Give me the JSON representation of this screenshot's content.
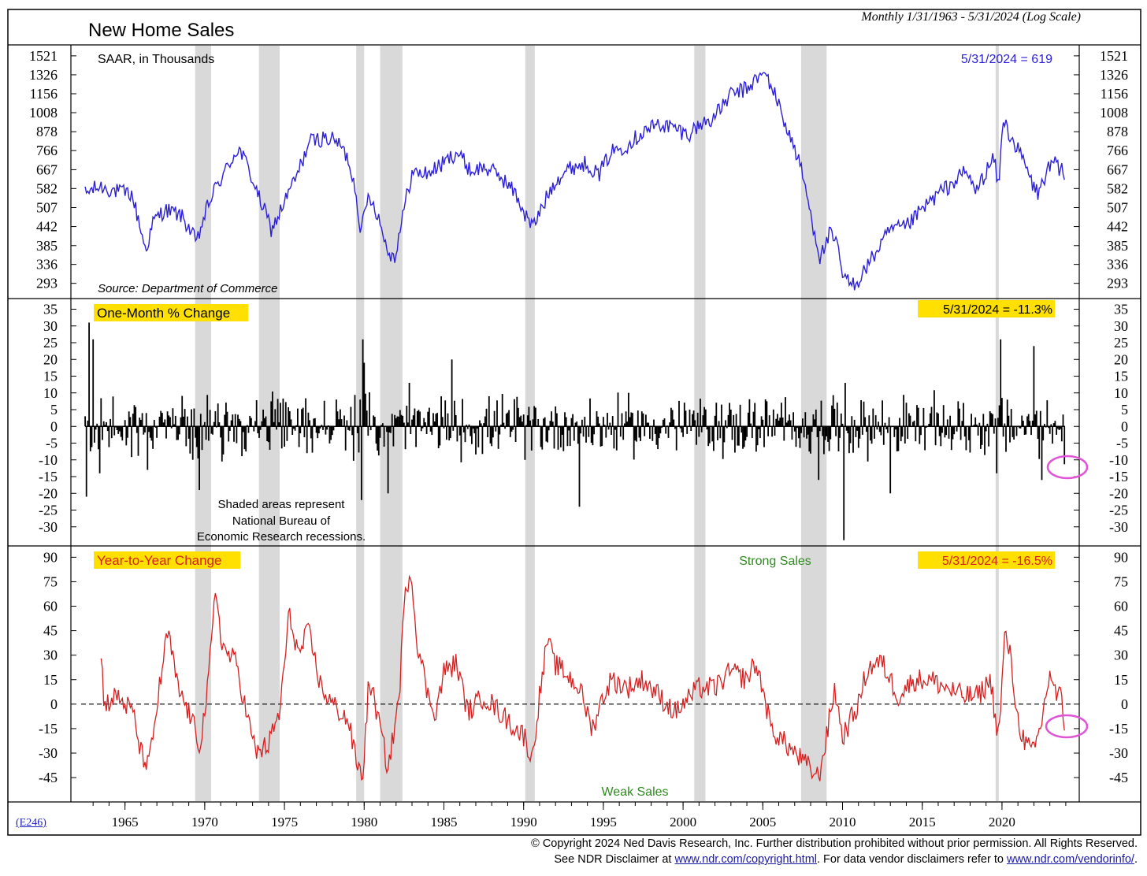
{
  "title": "New Home Sales",
  "date_range": "Monthly 1/31/1963 - 5/31/2024 (Log Scale)",
  "chart_code": "(E246)",
  "footer": {
    "line1": "© Copyright 2024 Ned Davis Research, Inc.  Further distribution prohibited without prior permission.  All Rights Reserved.",
    "line2_prefix": "See NDR Disclaimer at ",
    "link1": "www.ndr.com/copyright.html",
    "line2_mid": ". For data vendor disclaimers refer to ",
    "link2": "www.ndr.com/vendorinfo/",
    "line2_suffix": "."
  },
  "colors": {
    "sales": "#2b1fd8",
    "yoy": "#d42020",
    "highlight": "#ffe000",
    "recession": "#d9d9d9",
    "circle": "#e055d8",
    "green": "#2e8b1e"
  },
  "recession_shading_note": [
    "Shaded areas represent",
    "National Bureau of",
    "Economic Research recessions."
  ],
  "recessions": [
    [
      1969.9,
      1970.9
    ],
    [
      1973.9,
      1975.2
    ],
    [
      1980.0,
      1980.5
    ],
    [
      1981.5,
      1982.9
    ],
    [
      1990.6,
      1991.2
    ],
    [
      2001.2,
      2001.9
    ],
    [
      2007.9,
      2009.5
    ],
    [
      2020.1,
      2020.3
    ]
  ],
  "x_axis": {
    "range": [
      1962.75,
      2024.95
    ],
    "ticks": [
      1965,
      1970,
      1975,
      1980,
      1985,
      1990,
      1995,
      2000,
      2005,
      2010,
      2015,
      2020
    ]
  },
  "chart_data": [
    {
      "type": "line",
      "name": "New Home Sales",
      "subtitle": "SAAR, in Thousands",
      "source": "Source: Department of Commerce",
      "scale": "log",
      "ylim": [
        270,
        1600
      ],
      "y_ticks": [
        1521,
        1326,
        1156,
        1008,
        878,
        766,
        667,
        582,
        507,
        442,
        385,
        336,
        293
      ],
      "latest_label": "5/31/2024 = 619",
      "anchors": [
        [
          1963.0,
          560
        ],
        [
          1963.5,
          580
        ],
        [
          1964.0,
          590
        ],
        [
          1965.0,
          570
        ],
        [
          1965.9,
          560
        ],
        [
          1966.5,
          430
        ],
        [
          1966.8,
          370
        ],
        [
          1967.3,
          460
        ],
        [
          1968.0,
          500
        ],
        [
          1969.0,
          480
        ],
        [
          1969.6,
          430
        ],
        [
          1970.0,
          390
        ],
        [
          1970.5,
          480
        ],
        [
          1971.0,
          560
        ],
        [
          1971.8,
          660
        ],
        [
          1972.6,
          780
        ],
        [
          1973.1,
          700
        ],
        [
          1973.8,
          560
        ],
        [
          1974.7,
          430
        ],
        [
          1975.3,
          500
        ],
        [
          1976.3,
          640
        ],
        [
          1977.1,
          820
        ],
        [
          1978.0,
          840
        ],
        [
          1978.8,
          820
        ],
        [
          1979.5,
          720
        ],
        [
          1980.0,
          560
        ],
        [
          1980.3,
          420
        ],
        [
          1980.8,
          560
        ],
        [
          1981.3,
          490
        ],
        [
          1981.9,
          380
        ],
        [
          1982.4,
          350
        ],
        [
          1982.9,
          470
        ],
        [
          1983.5,
          650
        ],
        [
          1984.5,
          650
        ],
        [
          1985.5,
          700
        ],
        [
          1986.3,
          760
        ],
        [
          1987.2,
          660
        ],
        [
          1988.0,
          680
        ],
        [
          1989.0,
          640
        ],
        [
          1990.0,
          560
        ],
        [
          1990.6,
          480
        ],
        [
          1991.1,
          440
        ],
        [
          1991.6,
          500
        ],
        [
          1992.5,
          620
        ],
        [
          1993.5,
          680
        ],
        [
          1994.5,
          700
        ],
        [
          1995.2,
          640
        ],
        [
          1996.0,
          760
        ],
        [
          1997.0,
          800
        ],
        [
          1998.0,
          880
        ],
        [
          1999.0,
          930
        ],
        [
          2000.0,
          900
        ],
        [
          2000.8,
          860
        ],
        [
          2001.5,
          920
        ],
        [
          2002.5,
          980
        ],
        [
          2003.5,
          1150
        ],
        [
          2004.5,
          1200
        ],
        [
          2005.2,
          1300
        ],
        [
          2005.7,
          1330
        ],
        [
          2006.4,
          1100
        ],
        [
          2007.0,
          900
        ],
        [
          2007.8,
          700
        ],
        [
          2008.5,
          480
        ],
        [
          2009.1,
          350
        ],
        [
          2009.7,
          420
        ],
        [
          2010.2,
          380
        ],
        [
          2010.5,
          310
        ],
        [
          2011.0,
          290
        ],
        [
          2011.5,
          300
        ],
        [
          2012.5,
          360
        ],
        [
          2013.5,
          430
        ],
        [
          2014.5,
          440
        ],
        [
          2015.5,
          500
        ],
        [
          2016.5,
          560
        ],
        [
          2017.5,
          610
        ],
        [
          2018.2,
          660
        ],
        [
          2018.9,
          570
        ],
        [
          2019.5,
          660
        ],
        [
          2020.0,
          720
        ],
        [
          2020.3,
          580
        ],
        [
          2020.6,
          980
        ],
        [
          2020.8,
          900
        ],
        [
          2021.3,
          800
        ],
        [
          2021.8,
          720
        ],
        [
          2022.4,
          600
        ],
        [
          2022.8,
          560
        ],
        [
          2023.3,
          660
        ],
        [
          2023.8,
          700
        ],
        [
          2024.1,
          660
        ],
        [
          2024.2,
          700
        ],
        [
          2024.42,
          619
        ]
      ]
    },
    {
      "type": "bar",
      "name": "One-Month % Change",
      "ylim": [
        -35,
        37
      ],
      "y_ticks": [
        35,
        30,
        25,
        20,
        15,
        10,
        5,
        0,
        -5,
        -10,
        -15,
        -20,
        -25,
        -30
      ],
      "latest_label": "5/31/2024 = -11.3%",
      "spikes": [
        [
          1963.1,
          -21
        ],
        [
          1963.25,
          31
        ],
        [
          1963.5,
          26
        ],
        [
          1963.9,
          -14
        ],
        [
          1966.9,
          -13
        ],
        [
          1970.2,
          -19
        ],
        [
          1980.3,
          -22
        ],
        [
          1980.4,
          26
        ],
        [
          1980.5,
          19
        ],
        [
          1982.0,
          -20
        ],
        [
          1983.3,
          13
        ],
        [
          1986.0,
          20
        ],
        [
          1994.0,
          -24
        ],
        [
          2009.0,
          -16
        ],
        [
          2010.6,
          -34
        ],
        [
          2010.7,
          13
        ],
        [
          2013.5,
          -20
        ],
        [
          2020.2,
          -14
        ],
        [
          2020.4,
          26
        ],
        [
          2022.5,
          24
        ],
        [
          2023.0,
          -16
        ],
        [
          2024.42,
          -11.3
        ]
      ]
    },
    {
      "type": "line",
      "name": "Year-to-Year Change",
      "ylim": [
        -58,
        95
      ],
      "y_ticks": [
        90,
        75,
        60,
        45,
        30,
        15,
        0,
        -15,
        -30,
        -45
      ],
      "labels": {
        "strong": "Strong Sales",
        "weak": "Weak Sales"
      },
      "latest_label": "5/31/2024 = -16.5%",
      "anchors": [
        [
          1964.0,
          30
        ],
        [
          1964.2,
          0
        ],
        [
          1965.0,
          5
        ],
        [
          1966.0,
          -5
        ],
        [
          1966.5,
          -30
        ],
        [
          1967.0,
          -38
        ],
        [
          1967.8,
          20
        ],
        [
          1968.2,
          45
        ],
        [
          1968.8,
          10
        ],
        [
          1969.5,
          -5
        ],
        [
          1970.2,
          -25
        ],
        [
          1970.7,
          10
        ],
        [
          1971.2,
          72
        ],
        [
          1971.6,
          35
        ],
        [
          1972.5,
          25
        ],
        [
          1973.0,
          0
        ],
        [
          1973.7,
          -30
        ],
        [
          1974.5,
          -25
        ],
        [
          1975.2,
          -5
        ],
        [
          1975.8,
          55
        ],
        [
          1976.4,
          30
        ],
        [
          1977.0,
          45
        ],
        [
          1977.8,
          10
        ],
        [
          1978.5,
          0
        ],
        [
          1979.5,
          -10
        ],
        [
          1980.0,
          -35
        ],
        [
          1980.4,
          -45
        ],
        [
          1980.8,
          15
        ],
        [
          1981.3,
          -5
        ],
        [
          1982.0,
          -40
        ],
        [
          1982.7,
          5
        ],
        [
          1983.0,
          60
        ],
        [
          1983.4,
          85
        ],
        [
          1983.8,
          40
        ],
        [
          1984.5,
          5
        ],
        [
          1985.0,
          -5
        ],
        [
          1985.5,
          20
        ],
        [
          1986.3,
          25
        ],
        [
          1987.0,
          -5
        ],
        [
          1988.0,
          5
        ],
        [
          1989.0,
          -5
        ],
        [
          1990.0,
          -15
        ],
        [
          1990.6,
          -20
        ],
        [
          1991.0,
          -35
        ],
        [
          1991.5,
          5
        ],
        [
          1992.0,
          40
        ],
        [
          1992.4,
          25
        ],
        [
          1993.0,
          20
        ],
        [
          1994.0,
          10
        ],
        [
          1994.8,
          -15
        ],
        [
          1995.5,
          5
        ],
        [
          1996.0,
          15
        ],
        [
          1997.0,
          10
        ],
        [
          1998.0,
          15
        ],
        [
          1999.0,
          5
        ],
        [
          2000.0,
          -5
        ],
        [
          2001.0,
          5
        ],
        [
          2001.5,
          10
        ],
        [
          2002.5,
          10
        ],
        [
          2003.5,
          20
        ],
        [
          2004.5,
          15
        ],
        [
          2005.0,
          25
        ],
        [
          2005.5,
          10
        ],
        [
          2006.0,
          -15
        ],
        [
          2007.0,
          -25
        ],
        [
          2007.5,
          -30
        ],
        [
          2008.5,
          -40
        ],
        [
          2009.0,
          -45
        ],
        [
          2009.5,
          -20
        ],
        [
          2010.0,
          10
        ],
        [
          2010.5,
          -20
        ],
        [
          2011.0,
          -10
        ],
        [
          2011.5,
          0
        ],
        [
          2012.0,
          20
        ],
        [
          2012.5,
          25
        ],
        [
          2013.0,
          25
        ],
        [
          2014.0,
          5
        ],
        [
          2015.0,
          15
        ],
        [
          2016.0,
          15
        ],
        [
          2017.0,
          10
        ],
        [
          2018.0,
          5
        ],
        [
          2019.0,
          5
        ],
        [
          2019.8,
          15
        ],
        [
          2020.1,
          -10
        ],
        [
          2020.3,
          -20
        ],
        [
          2020.7,
          45
        ],
        [
          2021.0,
          30
        ],
        [
          2021.5,
          -10
        ],
        [
          2022.0,
          -25
        ],
        [
          2022.5,
          -30
        ],
        [
          2023.0,
          -10
        ],
        [
          2023.5,
          20
        ],
        [
          2023.9,
          5
        ],
        [
          2024.2,
          5
        ],
        [
          2024.42,
          -16.5
        ]
      ]
    }
  ]
}
